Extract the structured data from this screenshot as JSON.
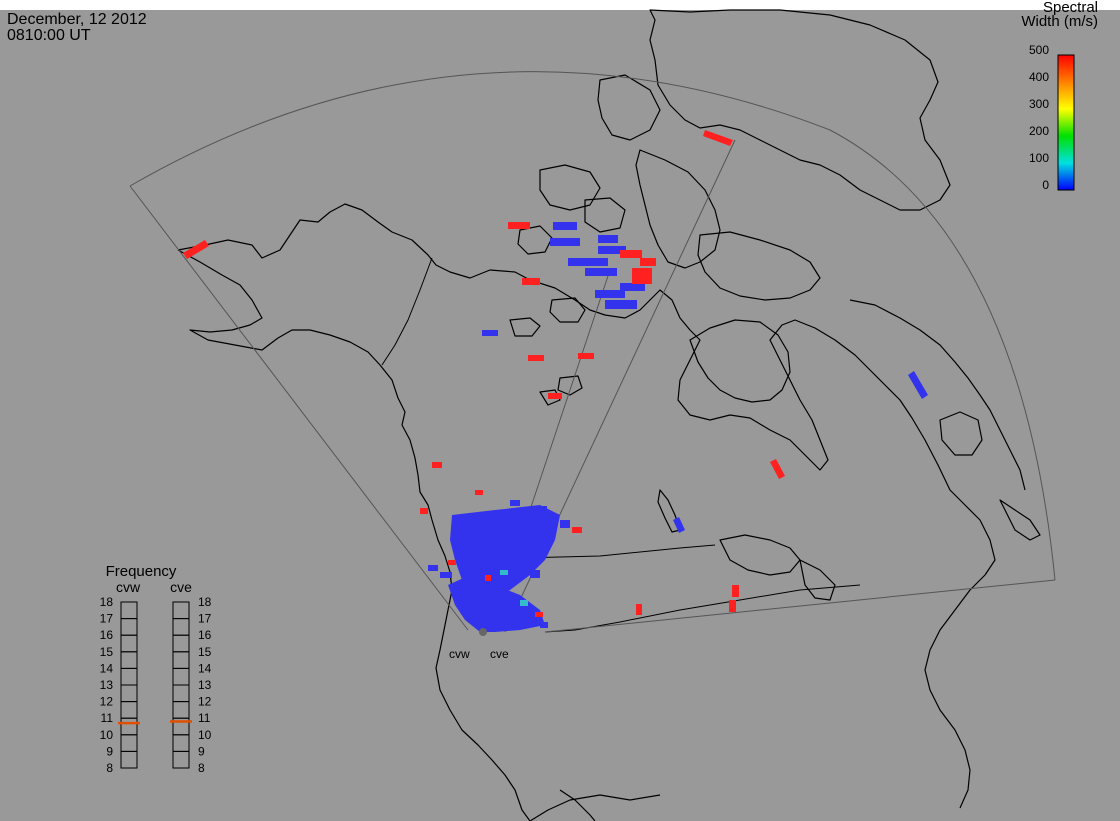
{
  "header": {
    "date": "December, 12 2012",
    "time": "0810:00 UT"
  },
  "colorbar": {
    "title_line1": "Spectral",
    "title_line2": "Width (m/s)",
    "ticks": [
      "500",
      "400",
      "300",
      "200",
      "100",
      "0"
    ],
    "min": 0,
    "max": 500,
    "colors": [
      "#ff0000",
      "#ff8000",
      "#ffff00",
      "#00e000",
      "#00e0e0",
      "#0000ff"
    ]
  },
  "frequency_panel": {
    "title": "Frequency",
    "radars": [
      {
        "name": "cvw",
        "frequency_mhz": 10.7
      },
      {
        "name": "cve",
        "frequency_mhz": 10.8
      }
    ],
    "ticks": [
      "18",
      "17",
      "16",
      "15",
      "14",
      "13",
      "12",
      "11",
      "10",
      "9",
      "8"
    ],
    "marker_color": "#e05000"
  },
  "radar_site": {
    "labels": [
      "cvw",
      "cve"
    ]
  },
  "colors": {
    "background": "#999999",
    "coast": "#000000",
    "fov": "#555555",
    "low_width": "#0000ff",
    "high_width": "#ff0000"
  }
}
